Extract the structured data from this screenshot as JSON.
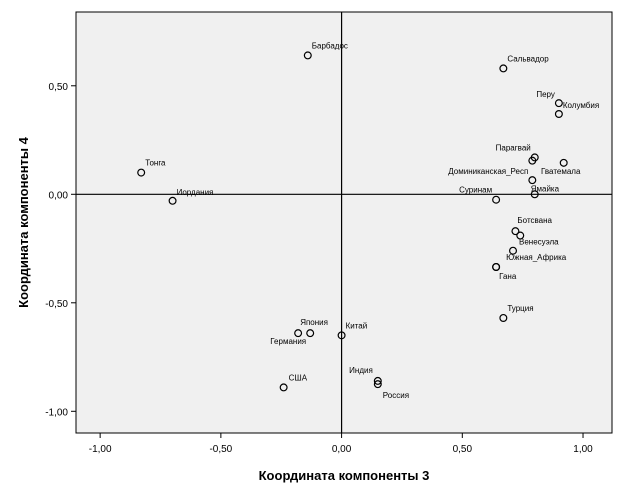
{
  "chart_data": {
    "type": "scatter",
    "title": "",
    "xlabel": "Координата компоненты 3",
    "ylabel": "Координата компоненты 4",
    "xlim": [
      -1.1,
      1.12
    ],
    "ylim": [
      -1.1,
      0.84
    ],
    "xticks": [
      -1.0,
      -0.5,
      0.0,
      0.5,
      1.0
    ],
    "yticks": [
      -1.0,
      -0.5,
      0.0,
      0.5
    ],
    "xtick_labels": [
      "-1,00",
      "-0,50",
      "0,00",
      "0,50",
      "1,00"
    ],
    "ytick_labels": [
      "-1,00",
      "-0,50",
      "0,00",
      "0,50"
    ],
    "grid": false,
    "reference_lines": {
      "x": 0,
      "y": 0
    },
    "colors": {
      "plot_bg": "#f0f0f0",
      "marker": "#000000",
      "axis": "#000000"
    },
    "points": [
      {
        "label": "Барбадос",
        "x": -0.14,
        "y": 0.64,
        "anchor": "start",
        "dx": 4,
        "dy": -7
      },
      {
        "label": "Сальвадор",
        "x": 0.67,
        "y": 0.58,
        "anchor": "start",
        "dx": 4,
        "dy": -7
      },
      {
        "label": "Перу",
        "x": 0.9,
        "y": 0.42,
        "anchor": "end",
        "dx": -4,
        "dy": -6
      },
      {
        "label": "Колумбия",
        "x": 0.9,
        "y": 0.37,
        "anchor": "start",
        "dx": 4,
        "dy": -6
      },
      {
        "label": "Парагвай",
        "x": 0.8,
        "y": 0.17,
        "anchor": "end",
        "dx": -4,
        "dy": -7
      },
      {
        "label": "",
        "x": 0.79,
        "y": 0.155,
        "anchor": "start",
        "dx": 0,
        "dy": 0
      },
      {
        "label": "Гватемала",
        "x": 0.92,
        "y": 0.145,
        "anchor": "middle",
        "dx": -3,
        "dy": 11
      },
      {
        "label": "Доминиканская_Респ",
        "x": 0.79,
        "y": 0.065,
        "anchor": "end",
        "dx": -4,
        "dy": -6
      },
      {
        "label": "Тонга",
        "x": -0.83,
        "y": 0.1,
        "anchor": "start",
        "dx": 4,
        "dy": -7
      },
      {
        "label": "Иордания",
        "x": -0.7,
        "y": -0.03,
        "anchor": "start",
        "dx": 4,
        "dy": -6
      },
      {
        "label": "Суринам",
        "x": 0.64,
        "y": -0.025,
        "anchor": "end",
        "dx": -4,
        "dy": -7
      },
      {
        "label": "Ямайка",
        "x": 0.8,
        "y": 0.0,
        "anchor": "start",
        "dx": -4,
        "dy": -3
      },
      {
        "label": "Ботсвана",
        "x": 0.72,
        "y": -0.17,
        "anchor": "start",
        "dx": 2,
        "dy": -8
      },
      {
        "label": "",
        "x": 0.74,
        "y": -0.19,
        "anchor": "start",
        "dx": 0,
        "dy": 0
      },
      {
        "label": "Венесуэла",
        "x": 0.71,
        "y": -0.26,
        "anchor": "start",
        "dx": 6,
        "dy": -6
      },
      {
        "label": "Южная_Африка",
        "x": 0.64,
        "y": -0.335,
        "anchor": "start",
        "dx": 10,
        "dy": -7
      },
      {
        "label": "Гана",
        "x": 0.64,
        "y": -0.335,
        "anchor": "start",
        "dx": 3,
        "dy": 12
      },
      {
        "label": "Турция",
        "x": 0.67,
        "y": -0.57,
        "anchor": "start",
        "dx": 4,
        "dy": -7
      },
      {
        "label": "Япония",
        "x": -0.13,
        "y": -0.64,
        "anchor": "start",
        "dx": -10,
        "dy": -8
      },
      {
        "label": "Германия",
        "x": -0.18,
        "y": -0.64,
        "anchor": "end",
        "dx": 8,
        "dy": 11
      },
      {
        "label": "Китай",
        "x": 0.0,
        "y": -0.65,
        "anchor": "start",
        "dx": 4,
        "dy": -7
      },
      {
        "label": "США",
        "x": -0.24,
        "y": -0.89,
        "anchor": "start",
        "dx": 5,
        "dy": -7
      },
      {
        "label": "Индия",
        "x": 0.15,
        "y": -0.86,
        "anchor": "end",
        "dx": -5,
        "dy": -8
      },
      {
        "label": "Россия",
        "x": 0.15,
        "y": -0.875,
        "anchor": "start",
        "dx": 5,
        "dy": 14
      }
    ]
  }
}
